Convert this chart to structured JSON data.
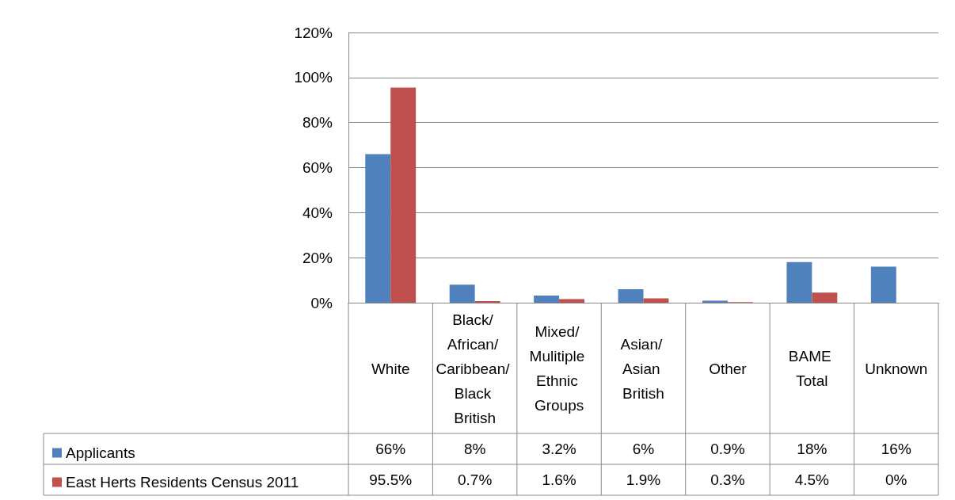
{
  "chart_data": {
    "type": "bar",
    "categories": [
      "White",
      "Black/ African/ Caribbean/ Black British",
      "Mixed/ Mulitiple Ethnic Groups",
      "Asian/ Asian British",
      "Other",
      "BAME Total",
      "Unknown"
    ],
    "series": [
      {
        "name": "Applicants",
        "color": "#4f81bd",
        "values": [
          66,
          8,
          3.2,
          6,
          0.9,
          18,
          16
        ],
        "value_labels": [
          "66%",
          "8%",
          "3.2%",
          "6%",
          "0.9%",
          "18%",
          "16%"
        ]
      },
      {
        "name": "East Herts Residents Census 2011",
        "color": "#c0504d",
        "values": [
          95.5,
          0.7,
          1.6,
          1.9,
          0.3,
          4.5,
          0
        ],
        "value_labels": [
          "95.5%",
          "0.7%",
          "1.6%",
          "1.9%",
          "0.3%",
          "4.5%",
          "0%"
        ]
      }
    ],
    "ylim": [
      0,
      120
    ],
    "yticks": [
      {
        "value": 0,
        "label": "0%"
      },
      {
        "value": 20,
        "label": "20%"
      },
      {
        "value": 40,
        "label": "40%"
      },
      {
        "value": 60,
        "label": "60%"
      },
      {
        "value": 80,
        "label": "80%"
      },
      {
        "value": 100,
        "label": "100%"
      },
      {
        "value": 120,
        "label": "120%"
      }
    ],
    "grid": "y",
    "legend": "bottom left"
  }
}
